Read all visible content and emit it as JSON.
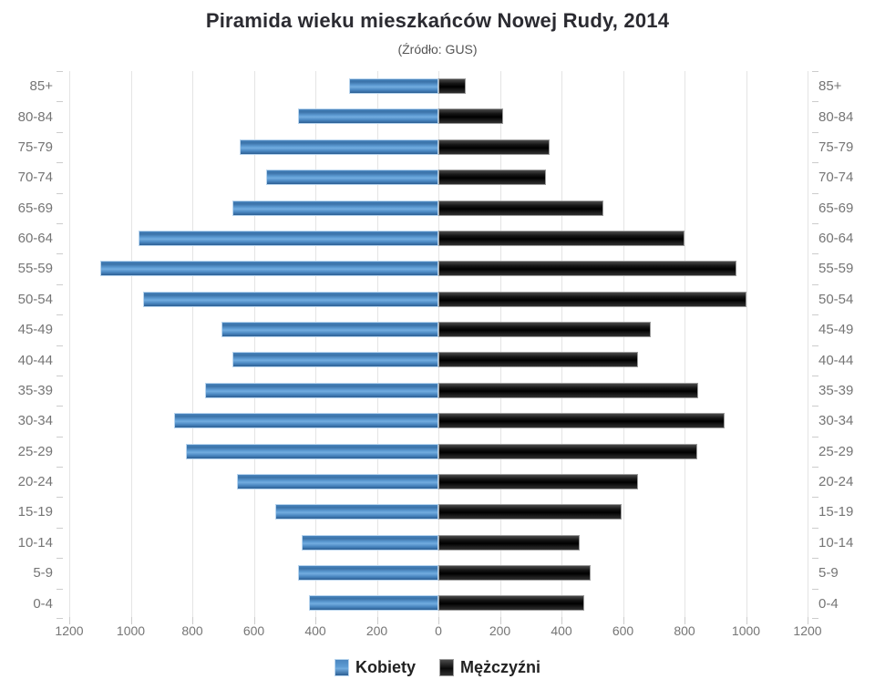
{
  "title": "Piramida wieku mieszkańców Nowej Rudy, 2014",
  "subtitle": "(Źródło: GUS)",
  "colors": {
    "female_bar": "#4a86bf",
    "male_bar": "#111111",
    "grid": "#e4e4e4",
    "axis_text": "#757575",
    "title_text": "#2b2b31"
  },
  "chart_data": {
    "type": "bar",
    "variant": "population-pyramid",
    "title": "Piramida wieku mieszkańców Nowej Rudy, 2014",
    "subtitle": "(Źródło: GUS)",
    "categories": [
      "85+",
      "80-84",
      "75-79",
      "70-74",
      "65-69",
      "60-64",
      "55-59",
      "50-54",
      "45-49",
      "40-44",
      "35-39",
      "30-34",
      "25-29",
      "20-24",
      "15-19",
      "10-14",
      "5-9",
      "0-4"
    ],
    "series": [
      {
        "name": "Kobiety",
        "side": "left",
        "color": "#4a86bf",
        "values": [
          290,
          455,
          645,
          560,
          670,
          975,
          1100,
          960,
          705,
          670,
          760,
          860,
          820,
          655,
          530,
          445,
          455,
          420
        ]
      },
      {
        "name": "Mężczyźni",
        "side": "right",
        "color": "#111111",
        "values": [
          90,
          210,
          360,
          350,
          535,
          800,
          970,
          1000,
          690,
          650,
          845,
          930,
          840,
          650,
          595,
          460,
          495,
          475
        ]
      }
    ],
    "x_axis_ticks": [
      "1200",
      "1000",
      "800",
      "600",
      "400",
      "200",
      "0",
      "200",
      "400",
      "600",
      "800",
      "1000",
      "1200"
    ],
    "x_max_each_side": 1200,
    "grid": true,
    "legend_position": "bottom"
  }
}
